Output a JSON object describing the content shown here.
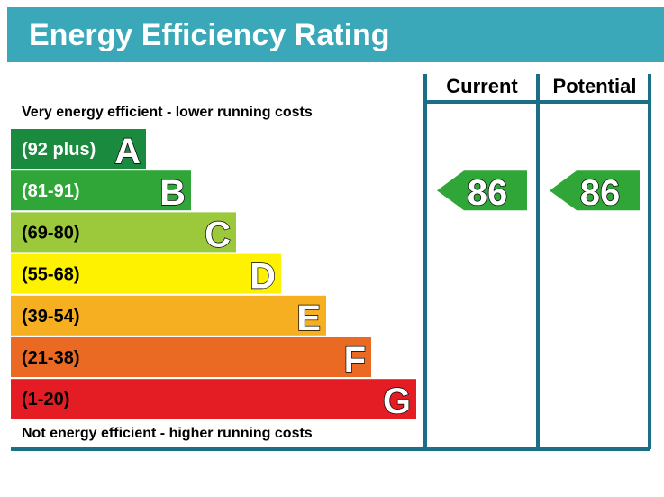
{
  "header": {
    "title": "Energy Efficiency Rating"
  },
  "captions": {
    "top": "Very energy efficient - lower running costs",
    "bottom": "Not energy efficient - higher running costs"
  },
  "columns": {
    "current": "Current",
    "potential": "Potential"
  },
  "colors": {
    "header": "#3aa8b8",
    "frame": "#1a6f86"
  },
  "chart_data": {
    "type": "bar",
    "bands": [
      {
        "range": "(92 plus)",
        "letter": "A",
        "color": "#1a8a3f",
        "text_color": "#ffffff"
      },
      {
        "range": "(81-91)",
        "letter": "B",
        "color": "#2fa637",
        "text_color": "#ffffff"
      },
      {
        "range": "(69-80)",
        "letter": "C",
        "color": "#9bc93b",
        "text_color": "#000000"
      },
      {
        "range": "(55-68)",
        "letter": "D",
        "color": "#fff200",
        "text_color": "#000000"
      },
      {
        "range": "(39-54)",
        "letter": "E",
        "color": "#f6af20",
        "text_color": "#000000"
      },
      {
        "range": "(21-38)",
        "letter": "F",
        "color": "#ea6a24",
        "text_color": "#000000"
      },
      {
        "range": "(1-20)",
        "letter": "G",
        "color": "#e31d23",
        "text_color": "#000000"
      }
    ],
    "current": {
      "value": 86,
      "band": "B"
    },
    "potential": {
      "value": 86,
      "band": "B"
    }
  }
}
